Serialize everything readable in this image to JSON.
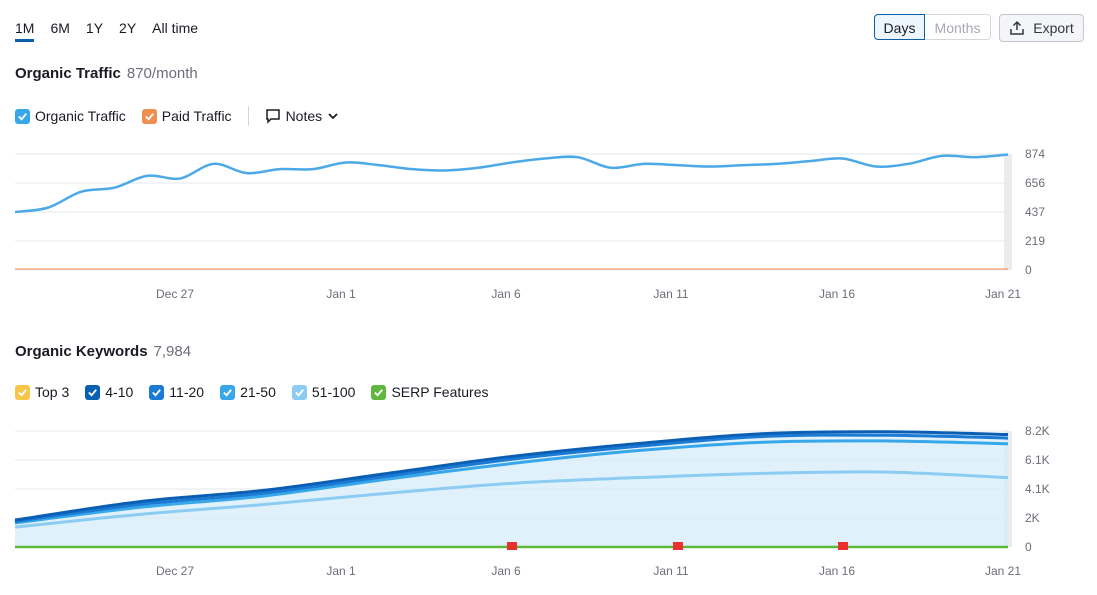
{
  "range_tabs": [
    "1M",
    "6M",
    "1Y",
    "2Y",
    "All time"
  ],
  "period_toggle": {
    "days": "Days",
    "months": "Months"
  },
  "export_label": "Export",
  "traffic": {
    "title": "Organic Traffic",
    "value": "870/month",
    "legend": {
      "organic": "Organic Traffic",
      "paid": "Paid Traffic",
      "notes": "Notes"
    }
  },
  "keywords": {
    "title": "Organic Keywords",
    "value": "7,984",
    "legend": [
      "Top 3",
      "4-10",
      "11-20",
      "21-50",
      "51-100",
      "SERP Features"
    ]
  },
  "colors": {
    "organic": "#4aa9e6",
    "paid": "#f08d4f",
    "top3": "#f7c548",
    "k4_10": "#0a5fb4",
    "k11_20": "#1a7ad4",
    "k21_50": "#38a7ea",
    "k51_100": "#8cccf2",
    "serp": "#60b740",
    "flag": "#e8302c"
  },
  "chart_data": [
    {
      "type": "line",
      "title": "Organic Traffic",
      "x_labels": [
        "Dec 27",
        "Jan 1",
        "Jan 6",
        "Jan 11",
        "Jan 16",
        "Jan 21"
      ],
      "y_ticks": [
        "874",
        "656",
        "437",
        "219",
        "0"
      ],
      "ylim": [
        0,
        874
      ],
      "series": [
        {
          "name": "Organic Traffic",
          "values": [
            437,
            470,
            590,
            620,
            710,
            690,
            800,
            730,
            760,
            760,
            810,
            790,
            760,
            750,
            770,
            810,
            840,
            850,
            770,
            800,
            790,
            780,
            790,
            800,
            820,
            840,
            780,
            800,
            860,
            850,
            870
          ]
        },
        {
          "name": "Paid Traffic",
          "values": [
            0,
            0,
            0,
            0,
            0,
            0,
            0,
            0,
            0,
            0,
            0,
            0,
            0,
            0,
            0,
            0,
            0,
            0,
            0,
            0,
            0,
            0,
            0,
            0,
            0,
            0,
            0,
            0,
            0,
            0,
            0
          ]
        }
      ]
    },
    {
      "type": "area",
      "title": "Organic Keywords",
      "x_labels": [
        "Dec 27",
        "Jan 1",
        "Jan 6",
        "Jan 11",
        "Jan 16",
        "Jan 21"
      ],
      "y_ticks": [
        "8.2K",
        "6.1K",
        "4.1K",
        "2K",
        "0"
      ],
      "ylim": [
        0,
        8200
      ],
      "series": [
        {
          "name": "4-10",
          "values": [
            1900,
            3200,
            4000,
            5200,
            6400,
            7300,
            8000,
            8150,
            7950
          ]
        },
        {
          "name": "11-20",
          "values": [
            1800,
            3000,
            3800,
            5000,
            6200,
            7100,
            7800,
            7900,
            7700
          ]
        },
        {
          "name": "21-50",
          "values": [
            1700,
            2800,
            3600,
            4800,
            5900,
            6800,
            7400,
            7500,
            7300
          ]
        },
        {
          "name": "51-100",
          "values": [
            1400,
            2300,
            3000,
            3800,
            4500,
            4900,
            5200,
            5300,
            4900
          ]
        },
        {
          "name": "SERP Features",
          "values": [
            0,
            0,
            0,
            0,
            0,
            0,
            0,
            0,
            0
          ]
        }
      ]
    }
  ]
}
